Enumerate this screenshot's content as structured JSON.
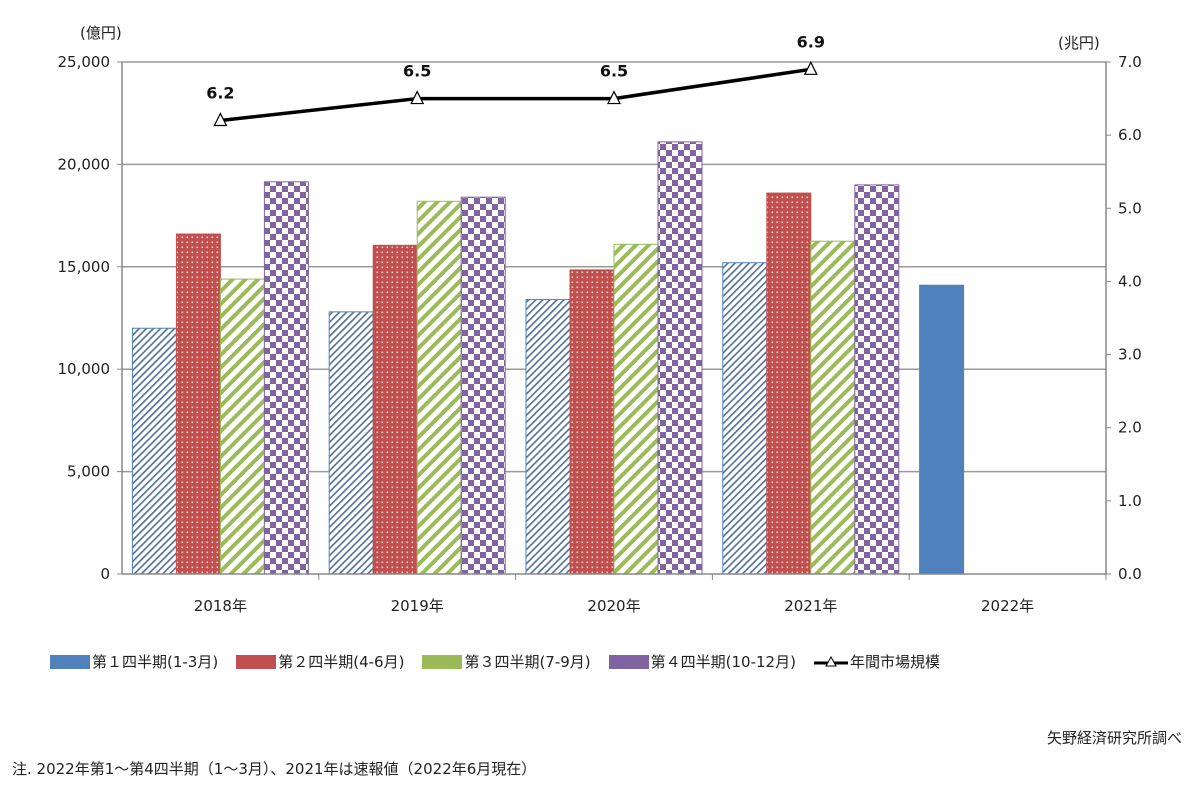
{
  "chart_data": {
    "type": "bar",
    "categories": [
      "2018年",
      "2019年",
      "2020年",
      "2021年",
      "2022年"
    ],
    "ylabel": "(億円)",
    "y2label": "(兆円)",
    "ylim": [
      0,
      25000
    ],
    "y2lim": [
      0,
      7.0
    ],
    "yticks": [
      "0",
      "5,000",
      "10,000",
      "15,000",
      "20,000",
      "25,000"
    ],
    "y2ticks": [
      "0.0",
      "1.0",
      "2.0",
      "3.0",
      "4.0",
      "5.0",
      "6.0",
      "7.0"
    ],
    "grid": true,
    "legend_position": "bottom",
    "series": [
      {
        "name": "第１四半期(1-3月)",
        "color": "#4f81bd",
        "pattern": "diagonal-lines",
        "values": [
          12000,
          12800,
          13400,
          15200,
          14100
        ]
      },
      {
        "name": "第２四半期(4-6月)",
        "color": "#c0504d",
        "pattern": "dots",
        "values": [
          16600,
          16050,
          14850,
          18600,
          null
        ]
      },
      {
        "name": "第３四半期(7-9月)",
        "color": "#9bbb59",
        "pattern": "diagonal-stripes",
        "values": [
          14400,
          18200,
          16100,
          16250,
          null
        ]
      },
      {
        "name": "第４四半期(10-12月)",
        "color": "#8064a2",
        "pattern": "checker",
        "values": [
          19150,
          18400,
          21100,
          19000,
          null
        ]
      }
    ],
    "line_series": {
      "name": "年間市場規模",
      "axis": "right",
      "color": "#000000",
      "values": [
        6.2,
        6.5,
        6.5,
        6.9,
        null
      ],
      "labels": [
        "6.2",
        "6.5",
        "6.5",
        "6.9",
        ""
      ]
    }
  },
  "source": "矢野経済研究所調べ",
  "note": "注. 2022年第1～第4四半期（1～3月）、2021年は速報値（2022年6月現在）"
}
